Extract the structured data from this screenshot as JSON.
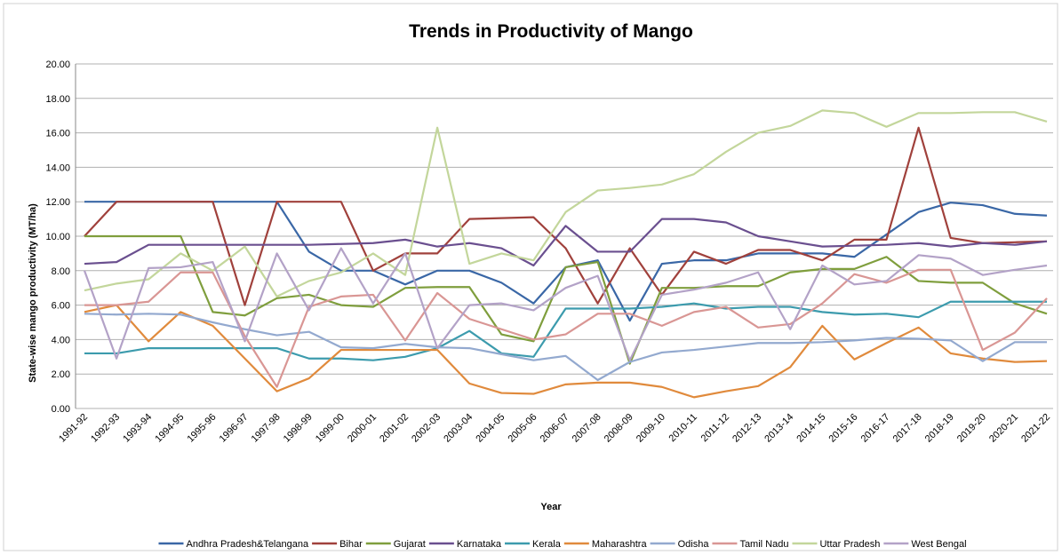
{
  "chart_data": {
    "type": "line",
    "title": "Trends in Productivity of Mango",
    "x_label": "Year",
    "y_label": "State-wise mango productivity (MT/ha)",
    "legend": "bottom",
    "grid": true,
    "ylim": [
      0,
      20
    ],
    "yticks": [
      {
        "value": 0,
        "label": "0.00"
      },
      {
        "value": 2,
        "label": "2.00"
      },
      {
        "value": 4,
        "label": "4.00"
      },
      {
        "value": 6,
        "label": "6.00"
      },
      {
        "value": 8,
        "label": "8.00"
      },
      {
        "value": 10,
        "label": "10.00"
      },
      {
        "value": 12,
        "label": "12.00"
      },
      {
        "value": 14,
        "label": "14.00"
      },
      {
        "value": 16,
        "label": "16.00"
      },
      {
        "value": 18,
        "label": "18.00"
      },
      {
        "value": 20,
        "label": "20.00"
      }
    ],
    "categories": [
      "1991-92",
      "1992-93",
      "1993-94",
      "1994-95",
      "1995-96",
      "1996-97",
      "1997-98",
      "1998-99",
      "1999-00",
      "2000-01",
      "2001-02",
      "2002-03",
      "2003-04",
      "2004-05",
      "2005-06",
      "2006-07",
      "2007-08",
      "2008-09",
      "2009-10",
      "2010-11",
      "2011-12",
      "2012-13",
      "2013-14",
      "2014-15",
      "2015-16",
      "2016-17",
      "2017-18",
      "2018-19",
      "2019-20",
      "2020-21",
      "2021-22"
    ],
    "series": [
      {
        "name": "Andhra Pradesh&Telangana",
        "color": "#3a67a6",
        "values": [
          12,
          12,
          12,
          12,
          12,
          12,
          12,
          9.1,
          8,
          8,
          7.2,
          8,
          8,
          7.3,
          6.1,
          8.2,
          8.6,
          5.1,
          8.4,
          8.6,
          8.6,
          9,
          9,
          9,
          8.8,
          10.1,
          11.4,
          11.95,
          11.8,
          11.3,
          11.2
        ]
      },
      {
        "name": "Bihar",
        "color": "#a0413c",
        "values": [
          10,
          12,
          12,
          12,
          12,
          6,
          12,
          12,
          12,
          8,
          9,
          9,
          11,
          11.05,
          11.1,
          9.3,
          6.1,
          9.3,
          6.6,
          9.1,
          8.4,
          9.2,
          9.2,
          8.6,
          9.8,
          9.8,
          16.3,
          9.9,
          9.6,
          9.65,
          9.7
        ]
      },
      {
        "name": "Gujarat",
        "color": "#7f9e3d",
        "values": [
          10,
          10,
          10,
          10,
          5.6,
          5.4,
          6.4,
          6.6,
          6,
          5.9,
          7,
          7.05,
          7.05,
          4.3,
          3.9,
          8.2,
          8.5,
          2.6,
          7,
          7,
          7.1,
          7.1,
          7.9,
          8.1,
          8.1,
          8.8,
          7.4,
          7.3,
          7.3,
          6.1,
          5.5
        ]
      },
      {
        "name": "Karnataka",
        "color": "#6a4f8f",
        "values": [
          8.4,
          8.5,
          9.5,
          9.5,
          9.5,
          9.5,
          9.5,
          9.5,
          9.55,
          9.6,
          9.8,
          9.4,
          9.6,
          9.3,
          8.3,
          10.6,
          9.1,
          9.1,
          11,
          11,
          10.8,
          10,
          9.7,
          9.4,
          9.45,
          9.5,
          9.6,
          9.4,
          9.6,
          9.5,
          9.7
        ]
      },
      {
        "name": "Kerala",
        "color": "#3c9bad",
        "values": [
          3.2,
          3.2,
          3.5,
          3.5,
          3.5,
          3.5,
          3.5,
          2.9,
          2.9,
          2.8,
          3,
          3.5,
          4.5,
          3.2,
          3,
          5.8,
          5.8,
          5.8,
          5.9,
          6.1,
          5.8,
          5.9,
          5.9,
          5.6,
          5.45,
          5.5,
          5.3,
          6.2,
          6.2,
          6.2,
          6.2
        ]
      },
      {
        "name": "Maharashtra",
        "color": "#e08a3c",
        "values": [
          5.6,
          6,
          3.9,
          5.6,
          4.8,
          2.9,
          1,
          1.75,
          3.4,
          3.4,
          3.4,
          3.4,
          1.45,
          0.9,
          0.85,
          1.4,
          1.5,
          1.5,
          1.25,
          0.65,
          1,
          1.3,
          2.4,
          4.8,
          2.85,
          3.8,
          4.7,
          3.2,
          2.9,
          2.7,
          2.75
        ]
      },
      {
        "name": "Odisha",
        "color": "#93a9cf",
        "values": [
          5.5,
          5.45,
          5.5,
          5.45,
          5,
          4.6,
          4.25,
          4.45,
          3.55,
          3.5,
          3.75,
          3.55,
          3.5,
          3.15,
          2.8,
          3.05,
          1.65,
          2.7,
          3.25,
          3.4,
          3.6,
          3.8,
          3.8,
          3.85,
          3.95,
          4.1,
          4.05,
          3.95,
          2.75,
          3.85,
          3.85
        ]
      },
      {
        "name": "Tamil Nadu",
        "color": "#d99694",
        "values": [
          6,
          6,
          6.2,
          7.9,
          7.9,
          4.2,
          1.25,
          5.9,
          6.5,
          6.6,
          3.95,
          6.7,
          5.2,
          4.6,
          4,
          4.3,
          5.5,
          5.5,
          4.8,
          5.6,
          5.9,
          4.7,
          4.9,
          6.1,
          7.8,
          7.3,
          8.05,
          8.05,
          3.4,
          4.4,
          6.4
        ]
      },
      {
        "name": "Uttar Pradesh",
        "color": "#c3d69b",
        "values": [
          6.85,
          7.25,
          7.5,
          9,
          8,
          9.4,
          6.5,
          7.4,
          7.9,
          9,
          7.75,
          16.3,
          8.4,
          9,
          8.6,
          11.4,
          12.65,
          12.8,
          13,
          13.6,
          14.9,
          16,
          16.4,
          17.3,
          17.15,
          16.35,
          17.15,
          17.15,
          17.2,
          17.2,
          16.65
        ]
      },
      {
        "name": "West Bengal",
        "color": "#b3a2c7",
        "values": [
          8,
          2.9,
          8.15,
          8.2,
          8.5,
          3.9,
          9,
          5.7,
          9.3,
          6.1,
          9,
          3.5,
          6,
          6.1,
          5.7,
          7,
          7.7,
          2.8,
          6.6,
          6.9,
          7.3,
          7.9,
          4.6,
          8.3,
          7.2,
          7.4,
          8.9,
          8.7,
          7.75,
          8.05,
          8.3
        ]
      }
    ]
  }
}
